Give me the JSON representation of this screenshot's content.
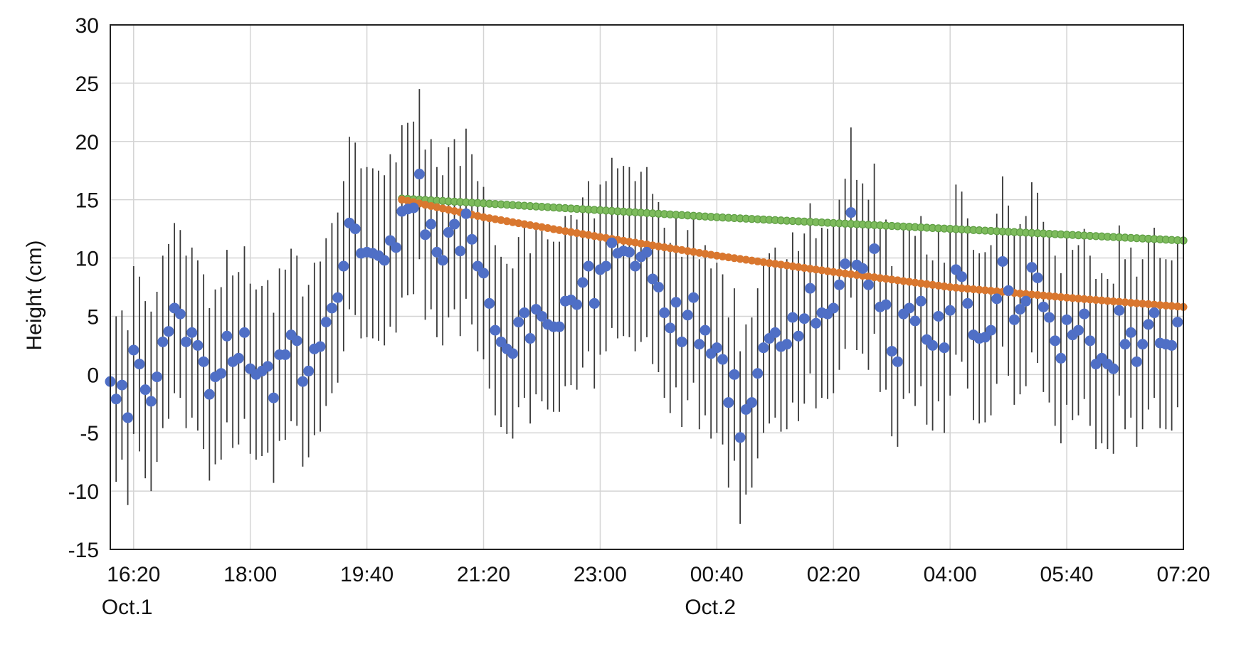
{
  "chart_data": {
    "type": "scatter",
    "title": "",
    "xlabel": "",
    "ylabel": "Height (cm)",
    "x_range": [
      "2020-10-01T16:00",
      "2020-10-02T07:20"
    ],
    "xlim_note": "",
    "ylim": [
      -15,
      30
    ],
    "yticks": [
      -15,
      -10,
      -5,
      0,
      5,
      10,
      15,
      20,
      25,
      30
    ],
    "xtick_labels": [
      "16:20",
      "18:00",
      "19:40",
      "21:20",
      "23:00",
      "00:40",
      "02:20",
      "04:00",
      "05:40",
      "07:20"
    ],
    "date_labels": [
      {
        "text": "Oct.1",
        "under": "16:20"
      },
      {
        "text": "Oct.2",
        "under": "00:40"
      }
    ],
    "grid": true,
    "legend": "none",
    "colors": {
      "measured": "#4f6fc6",
      "error_bar": "#3a3a3a",
      "orange_fit": "#d9772f",
      "green_fit": "#7dbb5c",
      "grid": "#d4d4d4"
    },
    "series": [
      {
        "kind": "points-with-error-bars",
        "time_start": "2020-10-01T16:00",
        "interval_minutes": 5,
        "values": [
          -0.6,
          -2.1,
          -0.9,
          -3.7,
          2.1,
          0.9,
          -1.3,
          -2.3,
          -0.2,
          2.8,
          3.7,
          5.7,
          5.2,
          2.8,
          3.6,
          2.5,
          1.1,
          -1.7,
          -0.2,
          0.1,
          3.3,
          1.1,
          1.4,
          3.6,
          0.5,
          0.0,
          0.3,
          0.7,
          -2.0,
          1.7,
          1.7,
          3.4,
          2.9,
          -0.6,
          0.3,
          2.2,
          2.4,
          4.5,
          5.7,
          6.6,
          9.3,
          13.0,
          12.5,
          10.4,
          10.5,
          10.4,
          10.2,
          9.8,
          11.5,
          10.9,
          14.0,
          14.2,
          14.3,
          17.2,
          12.0,
          12.9,
          10.5,
          9.8,
          12.2,
          12.9,
          10.6,
          13.8,
          11.6,
          9.3,
          8.7,
          6.1,
          3.8,
          2.8,
          2.2,
          1.8,
          4.5,
          5.3,
          3.1,
          5.6,
          5.0,
          4.3,
          4.1,
          4.1,
          6.3,
          6.4,
          6.0,
          7.9,
          9.3,
          6.1,
          9.0,
          9.3,
          11.3,
          10.4,
          10.6,
          10.5,
          9.3,
          10.1,
          10.5,
          8.2,
          7.5,
          5.3,
          4.0,
          6.2,
          2.8,
          5.1,
          6.6,
          2.6,
          3.8,
          1.8,
          2.3,
          1.3,
          -2.4,
          0.0,
          -5.4,
          -3.0,
          -2.4,
          0.1,
          2.3,
          3.1,
          3.6,
          2.4,
          2.6,
          4.9,
          3.3,
          4.8,
          7.4,
          4.4,
          5.3,
          5.2,
          5.7,
          7.7,
          9.5,
          13.9,
          9.4,
          9.1,
          7.7,
          10.8,
          5.8,
          6.0,
          2.0,
          1.1,
          5.2,
          5.7,
          4.6,
          6.3,
          3.0,
          2.5,
          5.0,
          2.3,
          5.5,
          9.0,
          8.4,
          6.1,
          3.4,
          3.1,
          3.2,
          3.8,
          6.5,
          9.7,
          7.2,
          4.7,
          5.6,
          6.3,
          9.2,
          8.3,
          5.8,
          4.9,
          2.9,
          1.4,
          4.7,
          3.4,
          3.8,
          5.2,
          2.9,
          0.9,
          1.4,
          0.9,
          0.5,
          5.5,
          2.6,
          3.6,
          1.1,
          2.6,
          4.3,
          5.3,
          2.7,
          2.6,
          2.5,
          4.5
        ],
        "error_half_width": [
          7.1,
          7.1,
          6.4,
          7.5,
          7.2,
          7.5,
          7.6,
          7.7,
          7.3,
          7.4,
          7.5,
          7.3,
          7.2,
          7.4,
          7.3,
          7.3,
          7.5,
          7.4,
          7.5,
          7.4,
          7.4,
          7.4,
          7.4,
          7.4,
          7.3,
          7.3,
          7.3,
          7.4,
          7.3,
          7.4,
          7.3,
          7.4,
          7.3,
          7.3,
          7.4,
          7.4,
          7.3,
          7.2,
          7.3,
          7.3,
          7.3,
          7.4,
          7.4,
          7.3,
          7.3,
          7.3,
          7.3,
          7.3,
          7.4,
          7.3,
          7.4,
          7.4,
          7.4,
          7.3,
          7.3,
          7.3,
          7.3,
          7.3,
          7.3,
          7.3,
          7.3,
          7.3,
          7.3,
          7.3,
          7.4,
          7.3,
          7.3,
          7.3,
          7.3,
          7.3,
          7.3,
          7.3,
          7.3,
          7.3,
          7.3,
          7.3,
          7.3,
          7.3,
          7.3,
          7.3,
          7.3,
          7.3,
          7.3,
          7.3,
          7.3,
          7.3,
          7.3,
          7.3,
          7.3,
          7.3,
          7.3,
          7.3,
          7.3,
          7.3,
          7.3,
          7.3,
          7.3,
          7.3,
          7.3,
          7.3,
          7.3,
          7.3,
          7.3,
          7.3,
          7.3,
          7.3,
          7.3,
          7.4,
          7.4,
          7.3,
          7.3,
          7.3,
          7.3,
          7.3,
          7.3,
          7.3,
          7.3,
          7.3,
          7.3,
          7.3,
          7.3,
          7.3,
          7.3,
          7.3,
          7.3,
          7.3,
          7.3,
          7.3,
          7.3,
          7.3,
          7.3,
          7.3,
          7.3,
          7.3,
          7.3,
          7.3,
          7.3,
          7.3,
          7.3,
          7.3,
          7.3,
          7.3,
          7.3,
          7.3,
          7.3,
          7.3,
          7.3,
          7.3,
          7.3,
          7.3,
          7.3,
          7.3,
          7.3,
          7.3,
          7.3,
          7.3,
          7.3,
          7.3,
          7.3,
          7.3,
          7.3,
          7.3,
          7.3,
          7.3,
          7.3,
          7.3,
          7.3,
          7.3,
          7.3,
          7.3,
          7.3,
          7.3,
          7.3,
          7.3,
          7.3,
          7.3,
          7.3,
          7.3,
          7.3,
          7.3,
          7.3,
          7.3,
          7.3,
          7.3,
          7.3
        ]
      },
      {
        "kind": "curve",
        "color_key": "orange_fit",
        "time_start": "2020-10-01T20:10",
        "time_end": "2020-10-02T07:20",
        "points": [
          [
            "2020-10-01T20:10",
            15.0
          ],
          [
            "2020-10-01T21:20",
            13.5
          ],
          [
            "2020-10-01T23:00",
            11.8
          ],
          [
            "2020-10-02T00:40",
            10.2
          ],
          [
            "2020-10-02T02:20",
            8.8
          ],
          [
            "2020-10-02T04:00",
            7.5
          ],
          [
            "2020-10-02T05:40",
            6.6
          ],
          [
            "2020-10-02T07:20",
            5.8
          ]
        ]
      },
      {
        "kind": "curve",
        "color_key": "green_fit",
        "time_start": "2020-10-01T20:10",
        "time_end": "2020-10-02T07:20",
        "points": [
          [
            "2020-10-01T20:10",
            15.1
          ],
          [
            "2020-10-01T23:00",
            14.1
          ],
          [
            "2020-10-02T00:40",
            13.5
          ],
          [
            "2020-10-02T02:20",
            13.0
          ],
          [
            "2020-10-02T04:00",
            12.5
          ],
          [
            "2020-10-02T05:40",
            12.0
          ],
          [
            "2020-10-02T07:20",
            11.5
          ]
        ]
      }
    ]
  }
}
